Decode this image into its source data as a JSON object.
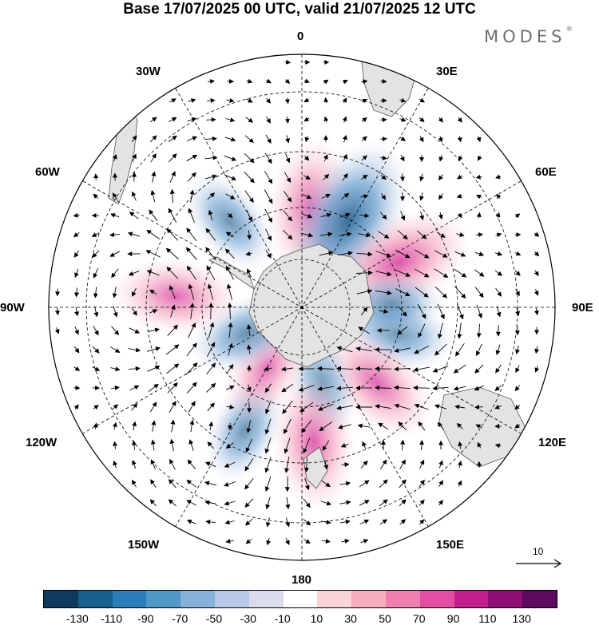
{
  "title": "Base 17/07/2025 00 UTC, valid 21/07/2025 12 UTC",
  "brand": {
    "name": "MODES",
    "mark": "®"
  },
  "lon_labels": {
    "n": "0",
    "e30": "30E",
    "e60": "60E",
    "e90": "90E",
    "e120": "120E",
    "e150": "150E",
    "s": "180",
    "w150": "150W",
    "w120": "120W",
    "w90": "90W",
    "w60": "60W",
    "w30": "30W"
  },
  "reference_vector": {
    "label": "10"
  },
  "colorbar": {
    "ticks": [
      "-130",
      "-110",
      "-90",
      "-70",
      "-50",
      "-30",
      "-10",
      "10",
      "30",
      "50",
      "70",
      "90",
      "110",
      "130"
    ],
    "colors": [
      "#0e3a5c",
      "#165f8f",
      "#2c7db6",
      "#4f98c8",
      "#86b2da",
      "#b6c8e5",
      "#dadcee",
      "#ffffff",
      "#f9d4d6",
      "#f5aebb",
      "#ef7fb0",
      "#e24ea2",
      "#c21e8e",
      "#8e1077",
      "#5c0b5e"
    ]
  },
  "anomalies": [
    {
      "lon": 5,
      "lat": -55,
      "value": 85
    },
    {
      "lon": 28,
      "lat": -55,
      "value": -115
    },
    {
      "lon": 65,
      "lat": -52,
      "value": 95
    },
    {
      "lon": 105,
      "lat": -55,
      "value": -60
    },
    {
      "lon": 88,
      "lat": -58,
      "value": -50
    },
    {
      "lon": 135,
      "lat": -52,
      "value": 75
    },
    {
      "lon": 165,
      "lat": -62,
      "value": -50
    },
    {
      "lon": 175,
      "lat": -42,
      "value": 80
    },
    {
      "lon": -155,
      "lat": -42,
      "value": -55
    },
    {
      "lon": -150,
      "lat": -65,
      "value": 60
    },
    {
      "lon": -115,
      "lat": -68,
      "value": -60
    },
    {
      "lon": -85,
      "lat": -45,
      "value": 70
    },
    {
      "lon": -40,
      "lat": -50,
      "value": -55
    }
  ],
  "colors": {
    "frame": "#000000",
    "land": "#e3e3e3",
    "graticule": "#000000",
    "vector": "#000000"
  }
}
